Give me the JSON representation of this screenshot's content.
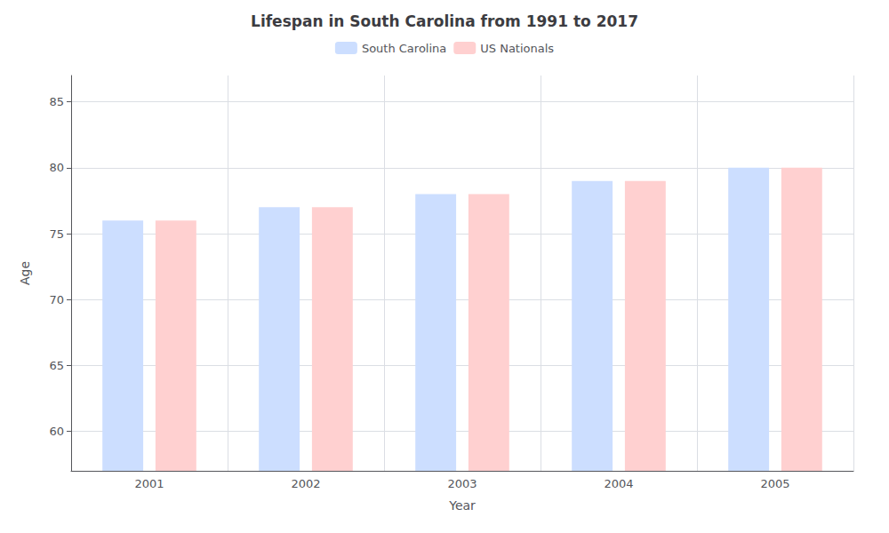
{
  "chart_data": {
    "type": "bar",
    "title": "Lifespan in South Carolina from 1991 to 2017",
    "xlabel": "Year",
    "ylabel": "Age",
    "categories": [
      "2001",
      "2002",
      "2003",
      "2004",
      "2005"
    ],
    "series": [
      {
        "name": "South Carolina",
        "color": "#ccdeff",
        "values": [
          76.0,
          77.0,
          78.0,
          79.0,
          80.0
        ]
      },
      {
        "name": "US Nationals",
        "color": "#ffd0d0",
        "values": [
          76.0,
          77.0,
          78.0,
          79.0,
          80.0
        ]
      }
    ],
    "ylim": [
      57,
      87
    ],
    "yticks": [
      60,
      65,
      70,
      75,
      80,
      85
    ],
    "grid": true,
    "legend": "top"
  }
}
